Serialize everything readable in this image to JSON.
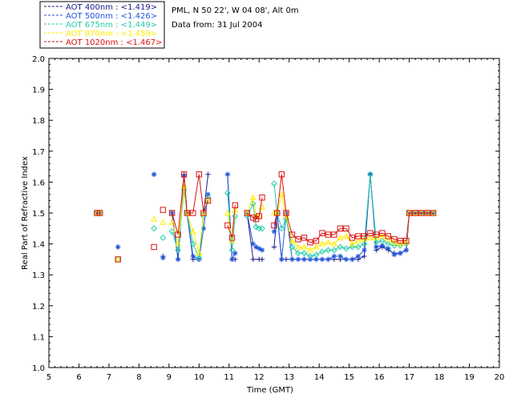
{
  "chart_data": {
    "type": "line",
    "title": "",
    "info_lines": [
      "PML, N 50 22', W 04 08', Alt 0m",
      "Data from: 31 Jul 2004"
    ],
    "xlabel": "Time (GMT)",
    "ylabel": "Real Part of Refractive Index",
    "xlim": [
      5,
      20
    ],
    "ylim": [
      1.0,
      2.0
    ],
    "xticks": [
      "5",
      "6",
      "7",
      "8",
      "9",
      "10",
      "11",
      "12",
      "13",
      "14",
      "15",
      "16",
      "17",
      "18",
      "19",
      "20"
    ],
    "yticks": [
      "1.0",
      "1.1",
      "1.2",
      "1.3",
      "1.4",
      "1.5",
      "1.6",
      "1.7",
      "1.8",
      "1.9",
      "2.0"
    ],
    "grid": false,
    "legend_position": "top-left, outside plot",
    "series": [
      {
        "name": "AOT  400nm : <1.419>",
        "color": "#1c1c8c",
        "marker": "plus",
        "segments": [
          [
            [
              6.6,
              1.5
            ],
            [
              6.7,
              1.5
            ]
          ],
          [
            [
              7.3,
              1.39
            ]
          ],
          [
            [
              8.5,
              1.625
            ]
          ],
          [
            [
              8.8,
              1.36
            ]
          ],
          [
            [
              9.1,
              1.5
            ],
            [
              9.3,
              1.35
            ],
            [
              9.5,
              1.625
            ],
            [
              9.6,
              1.5
            ],
            [
              9.8,
              1.35
            ],
            [
              10.0,
              1.35
            ],
            [
              10.15,
              1.5
            ],
            [
              10.3,
              1.625
            ]
          ],
          [
            [
              10.95,
              1.625
            ],
            [
              11.1,
              1.35
            ],
            [
              11.2,
              1.35
            ]
          ],
          [
            [
              11.6,
              1.5
            ],
            [
              11.8,
              1.35
            ],
            [
              12.0,
              1.35
            ],
            [
              12.1,
              1.35
            ]
          ],
          [
            [
              12.5,
              1.39
            ],
            [
              12.6,
              1.5
            ],
            [
              12.75,
              1.35
            ],
            [
              12.9,
              1.35
            ],
            [
              13.1,
              1.35
            ],
            [
              13.3,
              1.35
            ],
            [
              13.5,
              1.35
            ],
            [
              13.7,
              1.35
            ],
            [
              13.9,
              1.35
            ],
            [
              14.1,
              1.35
            ],
            [
              14.3,
              1.35
            ],
            [
              14.5,
              1.35
            ],
            [
              14.7,
              1.35
            ],
            [
              14.9,
              1.35
            ],
            [
              15.1,
              1.35
            ],
            [
              15.3,
              1.35
            ],
            [
              15.5,
              1.36
            ],
            [
              15.7,
              1.625
            ],
            [
              15.9,
              1.38
            ],
            [
              16.1,
              1.39
            ],
            [
              16.3,
              1.38
            ],
            [
              16.5,
              1.37
            ],
            [
              16.7,
              1.37
            ],
            [
              16.9,
              1.38
            ],
            [
              17.0,
              1.5
            ],
            [
              17.2,
              1.5
            ],
            [
              17.4,
              1.5
            ],
            [
              17.6,
              1.5
            ],
            [
              17.8,
              1.5
            ]
          ]
        ]
      },
      {
        "name": "AOT  500nm : <1.426>",
        "color": "#2255dd",
        "marker": "asterisk",
        "segments": [
          [
            [
              6.6,
              1.5
            ],
            [
              6.7,
              1.5
            ]
          ],
          [
            [
              7.3,
              1.39
            ]
          ],
          [
            [
              8.5,
              1.625
            ]
          ],
          [
            [
              8.8,
              1.355
            ]
          ],
          [
            [
              9.1,
              1.5
            ],
            [
              9.3,
              1.35
            ],
            [
              9.5,
              1.62
            ],
            [
              9.6,
              1.5
            ],
            [
              9.8,
              1.36
            ],
            [
              10.0,
              1.35
            ],
            [
              10.15,
              1.45
            ],
            [
              10.3,
              1.56
            ]
          ],
          [
            [
              10.95,
              1.625
            ],
            [
              11.1,
              1.35
            ],
            [
              11.2,
              1.37
            ]
          ],
          [
            [
              11.6,
              1.5
            ],
            [
              11.8,
              1.4
            ],
            [
              11.9,
              1.39
            ],
            [
              12.0,
              1.385
            ],
            [
              12.1,
              1.38
            ]
          ],
          [
            [
              12.5,
              1.44
            ],
            [
              12.6,
              1.5
            ],
            [
              12.75,
              1.35
            ],
            [
              12.9,
              1.5
            ],
            [
              13.1,
              1.35
            ],
            [
              13.3,
              1.35
            ],
            [
              13.5,
              1.35
            ],
            [
              13.7,
              1.35
            ],
            [
              13.9,
              1.35
            ],
            [
              14.1,
              1.35
            ],
            [
              14.3,
              1.35
            ],
            [
              14.5,
              1.36
            ],
            [
              14.7,
              1.36
            ],
            [
              14.9,
              1.35
            ],
            [
              15.1,
              1.35
            ],
            [
              15.3,
              1.36
            ],
            [
              15.5,
              1.38
            ],
            [
              15.7,
              1.625
            ],
            [
              15.9,
              1.39
            ],
            [
              16.1,
              1.395
            ],
            [
              16.3,
              1.385
            ],
            [
              16.5,
              1.365
            ],
            [
              16.7,
              1.37
            ],
            [
              16.9,
              1.38
            ],
            [
              17.0,
              1.5
            ],
            [
              17.2,
              1.5
            ],
            [
              17.4,
              1.5
            ],
            [
              17.6,
              1.5
            ],
            [
              17.8,
              1.5
            ]
          ]
        ]
      },
      {
        "name": "AOT  675nm : <1.449>",
        "color": "#22ccaa",
        "marker": "diamond",
        "segments": [
          [
            [
              6.6,
              1.5
            ],
            [
              6.7,
              1.5
            ]
          ],
          [
            [
              7.3,
              1.35
            ]
          ],
          [
            [
              8.5,
              1.45
            ]
          ],
          [
            [
              8.8,
              1.42
            ]
          ],
          [
            [
              9.1,
              1.44
            ],
            [
              9.3,
              1.38
            ],
            [
              9.5,
              1.575
            ],
            [
              9.6,
              1.5
            ],
            [
              9.8,
              1.4
            ],
            [
              10.0,
              1.355
            ],
            [
              10.15,
              1.49
            ],
            [
              10.3,
              1.55
            ]
          ],
          [
            [
              10.95,
              1.565
            ],
            [
              11.1,
              1.38
            ],
            [
              11.2,
              1.49
            ]
          ],
          [
            [
              11.6,
              1.49
            ],
            [
              11.8,
              1.53
            ],
            [
              11.9,
              1.455
            ],
            [
              12.0,
              1.45
            ],
            [
              12.1,
              1.45
            ]
          ],
          [
            [
              12.5,
              1.595
            ],
            [
              12.6,
              1.5
            ],
            [
              12.75,
              1.45
            ],
            [
              12.9,
              1.48
            ],
            [
              13.1,
              1.39
            ],
            [
              13.3,
              1.37
            ],
            [
              13.5,
              1.37
            ],
            [
              13.7,
              1.36
            ],
            [
              13.9,
              1.365
            ],
            [
              14.1,
              1.375
            ],
            [
              14.3,
              1.38
            ],
            [
              14.5,
              1.38
            ],
            [
              14.7,
              1.39
            ],
            [
              14.9,
              1.385
            ],
            [
              15.1,
              1.39
            ],
            [
              15.3,
              1.39
            ],
            [
              15.5,
              1.4
            ],
            [
              15.7,
              1.625
            ],
            [
              15.9,
              1.405
            ],
            [
              16.1,
              1.41
            ],
            [
              16.3,
              1.4
            ],
            [
              16.5,
              1.395
            ],
            [
              16.7,
              1.395
            ],
            [
              16.9,
              1.4
            ],
            [
              17.0,
              1.5
            ],
            [
              17.2,
              1.5
            ],
            [
              17.4,
              1.5
            ],
            [
              17.6,
              1.5
            ],
            [
              17.8,
              1.5
            ]
          ]
        ]
      },
      {
        "name": "AOT  870nm : <1.459>",
        "color": "#ffee00",
        "marker": "triangle",
        "segments": [
          [
            [
              6.6,
              1.5
            ],
            [
              6.7,
              1.5
            ]
          ],
          [
            [
              7.3,
              1.35
            ]
          ],
          [
            [
              8.5,
              1.48
            ]
          ],
          [
            [
              8.8,
              1.47
            ]
          ],
          [
            [
              9.1,
              1.47
            ],
            [
              9.3,
              1.4
            ],
            [
              9.5,
              1.59
            ],
            [
              9.6,
              1.5
            ],
            [
              9.8,
              1.44
            ],
            [
              10.0,
              1.37
            ],
            [
              10.15,
              1.5
            ],
            [
              10.3,
              1.54
            ]
          ],
          [
            [
              10.95,
              1.5
            ],
            [
              11.1,
              1.41
            ],
            [
              11.2,
              1.51
            ]
          ],
          [
            [
              11.6,
              1.5
            ],
            [
              11.8,
              1.55
            ],
            [
              11.9,
              1.49
            ],
            [
              12.0,
              1.49
            ],
            [
              12.1,
              1.52
            ]
          ],
          [
            [
              12.5,
              1.5
            ],
            [
              12.6,
              1.5
            ],
            [
              12.75,
              1.56
            ],
            [
              12.9,
              1.49
            ],
            [
              13.1,
              1.41
            ],
            [
              13.3,
              1.39
            ],
            [
              13.5,
              1.39
            ],
            [
              13.7,
              1.38
            ],
            [
              13.9,
              1.39
            ],
            [
              14.1,
              1.4
            ],
            [
              14.3,
              1.405
            ],
            [
              14.5,
              1.4
            ],
            [
              14.7,
              1.42
            ],
            [
              14.9,
              1.425
            ],
            [
              15.1,
              1.4
            ],
            [
              15.3,
              1.41
            ],
            [
              15.5,
              1.415
            ],
            [
              15.7,
              1.42
            ],
            [
              15.9,
              1.42
            ],
            [
              16.1,
              1.425
            ],
            [
              16.3,
              1.415
            ],
            [
              16.5,
              1.405
            ],
            [
              16.7,
              1.4
            ],
            [
              16.9,
              1.405
            ],
            [
              17.0,
              1.5
            ],
            [
              17.2,
              1.5
            ],
            [
              17.4,
              1.5
            ],
            [
              17.6,
              1.5
            ],
            [
              17.8,
              1.5
            ]
          ]
        ]
      },
      {
        "name": "AOT 1020nm : <1.467>",
        "color": "#dd1111",
        "marker": "square",
        "segments": [
          [
            [
              6.6,
              1.5
            ],
            [
              6.7,
              1.5
            ]
          ],
          [
            [
              7.3,
              1.35
            ]
          ],
          [
            [
              8.5,
              1.39
            ]
          ],
          [
            [
              8.8,
              1.51
            ]
          ],
          [
            [
              9.1,
              1.5
            ],
            [
              9.3,
              1.43
            ],
            [
              9.5,
              1.625
            ],
            [
              9.6,
              1.5
            ],
            [
              9.8,
              1.5
            ],
            [
              10.0,
              1.625
            ],
            [
              10.15,
              1.5
            ],
            [
              10.3,
              1.54
            ]
          ],
          [
            [
              10.95,
              1.46
            ],
            [
              11.1,
              1.42
            ],
            [
              11.2,
              1.525
            ]
          ],
          [
            [
              11.6,
              1.5
            ],
            [
              11.8,
              1.485
            ],
            [
              11.9,
              1.48
            ],
            [
              12.0,
              1.49
            ],
            [
              12.1,
              1.55
            ]
          ],
          [
            [
              12.5,
              1.46
            ],
            [
              12.6,
              1.5
            ],
            [
              12.75,
              1.625
            ],
            [
              12.9,
              1.5
            ],
            [
              13.1,
              1.43
            ],
            [
              13.3,
              1.415
            ],
            [
              13.5,
              1.42
            ],
            [
              13.7,
              1.405
            ],
            [
              13.9,
              1.41
            ],
            [
              14.1,
              1.435
            ],
            [
              14.3,
              1.43
            ],
            [
              14.5,
              1.43
            ],
            [
              14.7,
              1.45
            ],
            [
              14.9,
              1.45
            ],
            [
              15.1,
              1.42
            ],
            [
              15.3,
              1.425
            ],
            [
              15.5,
              1.425
            ],
            [
              15.7,
              1.435
            ],
            [
              15.9,
              1.43
            ],
            [
              16.1,
              1.435
            ],
            [
              16.3,
              1.425
            ],
            [
              16.5,
              1.415
            ],
            [
              16.7,
              1.41
            ],
            [
              16.9,
              1.41
            ],
            [
              17.0,
              1.5
            ],
            [
              17.2,
              1.5
            ],
            [
              17.4,
              1.5
            ],
            [
              17.6,
              1.5
            ],
            [
              17.8,
              1.5
            ]
          ]
        ]
      }
    ]
  }
}
